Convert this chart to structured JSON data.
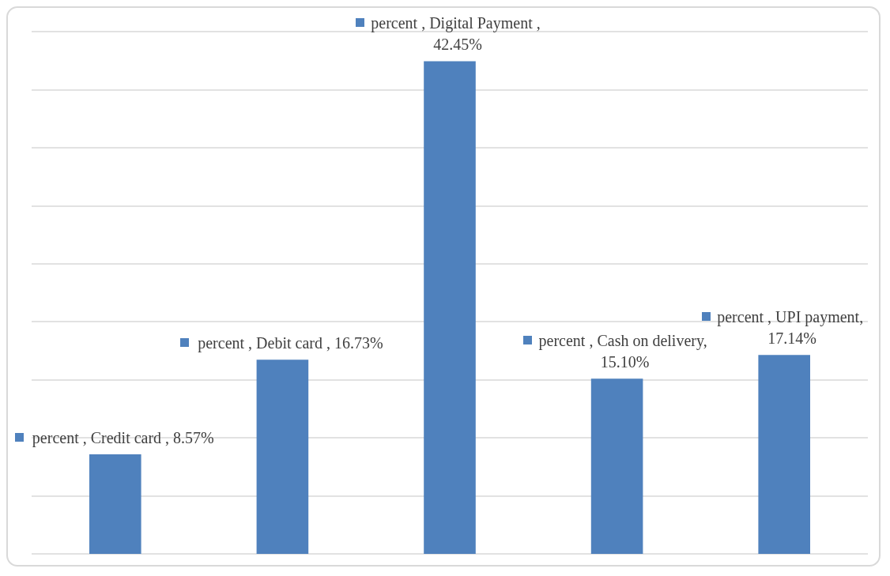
{
  "chart_data": {
    "type": "bar",
    "categories": [
      null,
      null,
      null,
      null,
      null
    ],
    "series": [
      {
        "color": "#4f81bd",
        "values": [
          8.57,
          16.73,
          42.45,
          15.1,
          17.14
        ],
        "value_labels": [
          "percent , Credit card , 8.57%",
          "percent , Debit card , 16.73%",
          "percent , Digital Payment , 42.45%",
          "percent , Cash on delivery, 15.10%",
          "percent , UPI payment, 17.14%"
        ]
      }
    ],
    "ylim": [
      0,
      45
    ],
    "yticks": [
      {
        "value": 0,
        "label": null
      },
      {
        "value": 5,
        "label": null
      },
      {
        "value": 10,
        "label": null
      },
      {
        "value": 15,
        "label": null
      },
      {
        "value": 20,
        "label": null
      },
      {
        "value": 25,
        "label": null
      },
      {
        "value": 30,
        "label": null
      },
      {
        "value": 35,
        "label": null
      },
      {
        "value": 40,
        "label": null
      },
      {
        "value": 45,
        "label": null
      }
    ],
    "grid": "y"
  }
}
